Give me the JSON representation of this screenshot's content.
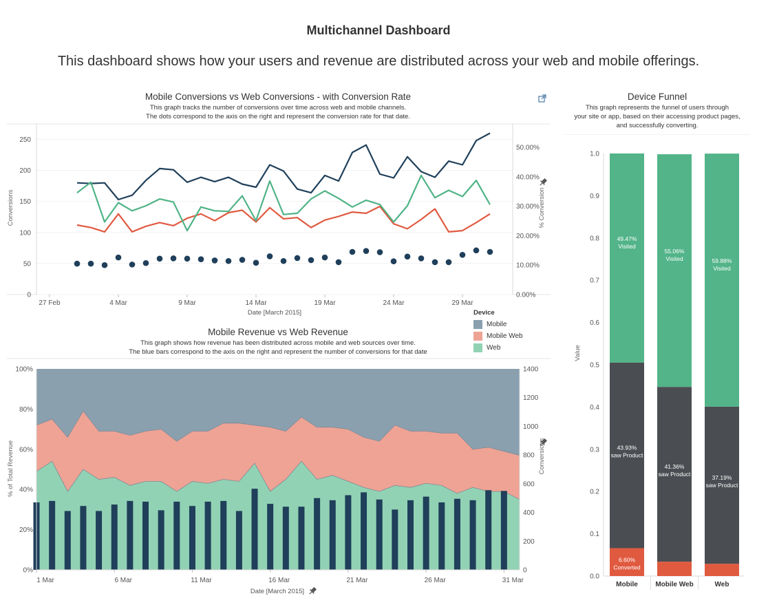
{
  "dashboard": {
    "title": "Multichannel Dashboard",
    "subtitle": "This dashboard shows how your users and revenue are distributed across your web and mobile offerings."
  },
  "colors": {
    "mobile": "#1f3f5a",
    "mobile_web": "#e05a40",
    "web": "#4fb386",
    "mobile_area": "#8aa0af",
    "mobile_web_area": "#eea395",
    "web_area": "#92d2b4",
    "funnel_visited": "#52b488",
    "funnel_product": "#4a4d51",
    "funnel_converted": "#e05a40"
  },
  "icons": {
    "popout": "external-link-icon",
    "pin": "pin-icon"
  },
  "legend": {
    "title": "Device",
    "items": [
      {
        "label": "Mobile",
        "color": "#8aa0af"
      },
      {
        "label": "Mobile Web",
        "color": "#eea395"
      },
      {
        "label": "Web",
        "color": "#92d2b4"
      }
    ]
  },
  "chart_data": [
    {
      "id": "conversions",
      "type": "line",
      "title": "Mobile Conversions vs Web Conversions - with Conversion Rate",
      "subtitle_lines": [
        "This graph tracks the number of conversions over time across web and mobile channels.",
        "The dots correspond to the axis on the right and represent the conversion rate for that date."
      ],
      "xlabel": "Date [March 2015]",
      "ylabel": "Conversions",
      "y2label": "% Conversion",
      "ylim": [
        0,
        275
      ],
      "y2lim": [
        0,
        0.58
      ],
      "yticks": [
        0,
        50,
        100,
        150,
        200,
        250
      ],
      "y2ticks": [
        "0.00%",
        "10.00%",
        "20.00%",
        "30.00%",
        "40.00%",
        "50.00%"
      ],
      "xticks": [
        "27 Feb",
        "4 Mar",
        "9 Mar",
        "14 Mar",
        "19 Mar",
        "24 Mar",
        "29 Mar"
      ],
      "x": [
        "2015-03-01",
        "2015-03-02",
        "2015-03-03",
        "2015-03-04",
        "2015-03-05",
        "2015-03-06",
        "2015-03-07",
        "2015-03-08",
        "2015-03-09",
        "2015-03-10",
        "2015-03-11",
        "2015-03-12",
        "2015-03-13",
        "2015-03-14",
        "2015-03-15",
        "2015-03-16",
        "2015-03-17",
        "2015-03-18",
        "2015-03-19",
        "2015-03-20",
        "2015-03-21",
        "2015-03-22",
        "2015-03-23",
        "2015-03-24",
        "2015-03-25",
        "2015-03-26",
        "2015-03-27",
        "2015-03-28",
        "2015-03-29",
        "2015-03-30",
        "2015-03-31"
      ],
      "series": [
        {
          "name": "Mobile",
          "values": [
            180,
            179,
            180,
            153,
            160,
            184,
            203,
            201,
            181,
            189,
            182,
            189,
            178,
            173,
            209,
            199,
            170,
            164,
            192,
            183,
            229,
            241,
            194,
            188,
            222,
            198,
            189,
            215,
            209,
            248,
            260
          ]
        },
        {
          "name": "Mobile Web",
          "values": [
            112,
            108,
            101,
            130,
            101,
            110,
            116,
            111,
            123,
            130,
            119,
            132,
            136,
            117,
            140,
            122,
            124,
            108,
            120,
            126,
            133,
            131,
            142,
            114,
            106,
            121,
            138,
            101,
            103,
            116,
            130
          ]
        },
        {
          "name": "Web",
          "values": [
            164,
            181,
            117,
            148,
            135,
            143,
            154,
            149,
            103,
            141,
            135,
            134,
            159,
            119,
            183,
            129,
            131,
            154,
            167,
            155,
            141,
            152,
            145,
            117,
            143,
            192,
            156,
            168,
            158,
            184,
            145
          ]
        },
        {
          "name": "% Conversion",
          "axis": "right",
          "values": [
            0.105,
            0.105,
            0.1,
            0.126,
            0.102,
            0.107,
            0.122,
            0.123,
            0.122,
            0.12,
            0.116,
            0.114,
            0.118,
            0.108,
            0.13,
            0.114,
            0.124,
            0.117,
            0.126,
            0.11,
            0.145,
            0.148,
            0.144,
            0.113,
            0.129,
            0.123,
            0.11,
            0.11,
            0.135,
            0.15,
            0.145
          ]
        }
      ]
    },
    {
      "id": "revenue",
      "type": "area",
      "title": "Mobile Revenue vs Web Revenue",
      "subtitle_lines": [
        "This graph shows how revenue has been distributed across mobile and web sources over time.",
        "The blue bars correspond to the axis on the right and represent the number of conversions for that date"
      ],
      "xlabel": "Date [March 2015]",
      "ylabel": "% of Total Revenue",
      "y2label": "Conversions",
      "ylim": [
        0,
        1
      ],
      "y2lim": [
        0,
        1400
      ],
      "yticks": [
        "0%",
        "20%",
        "40%",
        "60%",
        "80%",
        "100%"
      ],
      "y2ticks": [
        0,
        200,
        400,
        600,
        800,
        1000,
        1200,
        1400
      ],
      "xticks": [
        "1 Mar",
        "6 Mar",
        "11 Mar",
        "16 Mar",
        "21 Mar",
        "26 Mar",
        "31 Mar"
      ],
      "x": [
        "2015-03-01",
        "2015-03-02",
        "2015-03-03",
        "2015-03-04",
        "2015-03-05",
        "2015-03-06",
        "2015-03-07",
        "2015-03-08",
        "2015-03-09",
        "2015-03-10",
        "2015-03-11",
        "2015-03-12",
        "2015-03-13",
        "2015-03-14",
        "2015-03-15",
        "2015-03-16",
        "2015-03-17",
        "2015-03-18",
        "2015-03-19",
        "2015-03-20",
        "2015-03-21",
        "2015-03-22",
        "2015-03-23",
        "2015-03-24",
        "2015-03-25",
        "2015-03-26",
        "2015-03-27",
        "2015-03-28",
        "2015-03-29",
        "2015-03-30",
        "2015-03-31",
        "2015-04-01"
      ],
      "series": [
        {
          "name": "Web",
          "values": [
            0.49,
            0.54,
            0.39,
            0.5,
            0.45,
            0.46,
            0.42,
            0.44,
            0.44,
            0.39,
            0.44,
            0.43,
            0.45,
            0.44,
            0.53,
            0.39,
            0.45,
            0.54,
            0.45,
            0.47,
            0.44,
            0.41,
            0.39,
            0.42,
            0.41,
            0.43,
            0.42,
            0.38,
            0.41,
            0.39,
            0.39,
            0.35
          ]
        },
        {
          "name": "Mobile Web",
          "values": [
            0.72,
            0.75,
            0.66,
            0.79,
            0.69,
            0.69,
            0.67,
            0.69,
            0.7,
            0.64,
            0.69,
            0.69,
            0.73,
            0.73,
            0.72,
            0.71,
            0.69,
            0.76,
            0.71,
            0.71,
            0.7,
            0.66,
            0.64,
            0.72,
            0.69,
            0.69,
            0.68,
            0.68,
            0.6,
            0.61,
            0.59,
            0.57
          ]
        },
        {
          "name": "Mobile",
          "values": [
            1,
            1,
            1,
            1,
            1,
            1,
            1,
            1,
            1,
            1,
            1,
            1,
            1,
            1,
            1,
            1,
            1,
            1,
            1,
            1,
            1,
            1,
            1,
            1,
            1,
            1,
            1,
            1,
            1,
            1,
            1,
            1
          ]
        },
        {
          "name": "Conversions",
          "axis": "right",
          "type": "bar",
          "values": [
            470,
            480,
            410,
            445,
            410,
            455,
            480,
            475,
            415,
            475,
            445,
            475,
            480,
            410,
            565,
            460,
            440,
            440,
            500,
            485,
            520,
            540,
            490,
            420,
            485,
            510,
            470,
            495,
            485,
            555,
            550,
            0
          ]
        }
      ]
    },
    {
      "id": "funnel",
      "type": "bar",
      "stacked": true,
      "title": "Device Funnel",
      "subtitle_lines": [
        "This graph represents the funnel of users through",
        "your site or app, based on their accessing product pages,",
        "and successfully converting."
      ],
      "ylabel": "Value",
      "ylim": [
        0,
        1
      ],
      "yticks": [
        "0.0",
        "0.1",
        "0.2",
        "0.3",
        "0.4",
        "0.5",
        "0.6",
        "0.7",
        "0.8",
        "0.9",
        "1.0"
      ],
      "categories": [
        "Mobile",
        "Mobile Web",
        "Web"
      ],
      "series": [
        {
          "name": "Converted",
          "values": [
            0.066,
            0.034,
            0.029
          ],
          "labels": [
            "6.60%\nConverted",
            "",
            ""
          ]
        },
        {
          "name": "saw Product",
          "values": [
            0.4393,
            0.4136,
            0.3719
          ],
          "labels": [
            "43.93%\nsaw Product",
            "41.36%\nsaw Product",
            "37.19%\nsaw Product"
          ]
        },
        {
          "name": "Visited",
          "values": [
            0.4947,
            0.5506,
            0.5988
          ],
          "labels": [
            "49.47%\nVisited",
            "55.06%\nVisited",
            "59.88%\nVisited"
          ]
        }
      ]
    }
  ]
}
